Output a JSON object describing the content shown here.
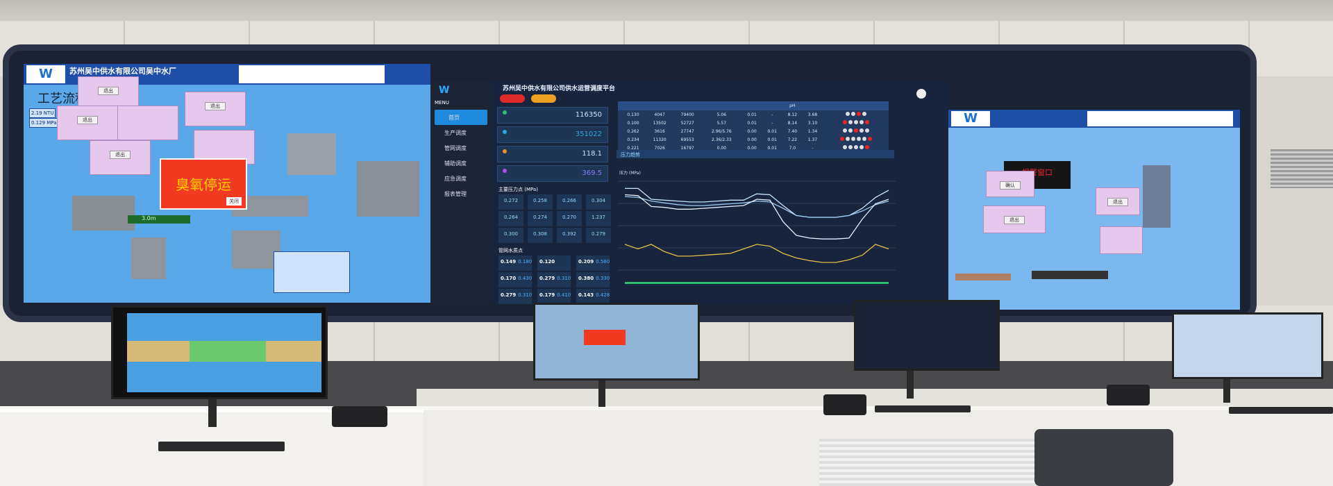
{
  "left_screen": {
    "company_title": "苏州吴中供水有限公司吴中水厂",
    "page_title": "工艺流程图",
    "readings": [
      "2.19 NTU",
      "0.129 MPa"
    ],
    "popup_button": "退出",
    "alarm_text": "臭氧停运",
    "alarm_close": "关闭",
    "bottom_reading": "3.0m"
  },
  "center_screen": {
    "title": "苏州吴中供水有限公司供水运营调度平台",
    "menu_label": "MENU",
    "sidebar": [
      "首页",
      "生产调度",
      "管网调度",
      "辅助调度",
      "应急调度",
      "报表管理"
    ],
    "kpis": [
      {
        "value": "116350",
        "color": "#2fbf71"
      },
      {
        "value": "351022",
        "color": "#2aa8e0"
      },
      {
        "value": "118.1",
        "color": "#f08a24"
      },
      {
        "value": "369.5",
        "color": "#b04cf0"
      }
    ],
    "pressure_title": "主要压力点 (MPa)",
    "pressure_points": [
      "0.272",
      "0.258",
      "0.266",
      "0.304",
      "0.264",
      "0.274",
      "0.270",
      "1.237",
      "0.300",
      "0.308",
      "0.392",
      "0.279"
    ],
    "quality_title": "管网水质点",
    "quality_points": [
      [
        "0.149",
        "0.180"
      ],
      [
        "0.120",
        ""
      ],
      [
        "0.209",
        "0.560"
      ],
      [
        "0.170",
        "0.430"
      ],
      [
        "0.279",
        "0.310"
      ],
      [
        "0.380",
        "0.330"
      ],
      [
        "0.279",
        "0.310"
      ],
      [
        "0.179",
        "0.410"
      ],
      [
        "0.143",
        "0.428"
      ]
    ],
    "table": {
      "header": [
        "",
        "",
        "",
        "",
        "",
        "",
        "",
        "pH",
        "",
        ""
      ],
      "rows": [
        [
          "",
          "0.130",
          "4047",
          "79400",
          "5.06",
          "0.01",
          "-",
          "8.12",
          "3.68"
        ],
        [
          "",
          "0.100",
          "13502",
          "52727",
          "5.57",
          "0.01",
          "-",
          "8.14",
          "3.10"
        ],
        [
          "",
          "0.262",
          "3616",
          "27747",
          "2.96/5.76",
          "0.00",
          "0.01",
          "7.40",
          "1.34"
        ],
        [
          "",
          "0.234",
          "11320",
          "69553",
          "2.36/2.33",
          "0.00",
          "0.01",
          "7.22",
          "1.37"
        ],
        [
          "",
          "0.221",
          "7026",
          "16797",
          "0.00",
          "0.00",
          "0.01",
          "7.0",
          "-"
        ]
      ],
      "status_dots": [
        [
          0,
          0,
          1,
          0
        ],
        [
          1,
          0,
          0,
          0,
          1
        ],
        [
          0,
          0,
          1,
          0,
          0
        ],
        [
          1,
          0,
          0,
          0,
          0,
          1
        ],
        [
          0,
          0,
          0,
          0,
          1
        ]
      ]
    },
    "chart_tab": "压力趋势",
    "chart_ylabel": "压力 (MPa)",
    "chart_series_trend": [
      [
        0.92,
        0.92,
        0.8,
        0.79,
        0.78,
        0.77,
        0.77,
        0.78,
        0.79,
        0.79,
        0.86,
        0.85,
        0.73,
        0.62,
        0.6,
        0.6,
        0.6,
        0.62,
        0.7,
        0.82,
        0.9
      ],
      [
        0.83,
        0.82,
        0.78,
        0.76,
        0.74,
        0.73,
        0.73,
        0.74,
        0.75,
        0.76,
        0.78,
        0.77,
        0.7,
        0.62,
        0.6,
        0.6,
        0.6,
        0.62,
        0.67,
        0.74,
        0.78
      ],
      [
        0.85,
        0.84,
        0.72,
        0.71,
        0.69,
        0.69,
        0.7,
        0.71,
        0.72,
        0.73,
        0.8,
        0.79,
        0.55,
        0.4,
        0.37,
        0.36,
        0.36,
        0.37,
        0.58,
        0.75,
        0.8
      ],
      [
        0.3,
        0.25,
        0.3,
        0.22,
        0.17,
        0.17,
        0.18,
        0.19,
        0.2,
        0.25,
        0.3,
        0.28,
        0.2,
        0.15,
        0.12,
        0.1,
        0.1,
        0.13,
        0.18,
        0.3,
        0.25
      ]
    ],
    "series_colors": [
      "#c8e6ff",
      "#9cc9f0",
      "#e8f2ff",
      "#e8c24a"
    ]
  },
  "right_screen": {
    "alarm_window": "报警窗口",
    "popup_buttons": [
      "确认",
      "退出"
    ]
  }
}
